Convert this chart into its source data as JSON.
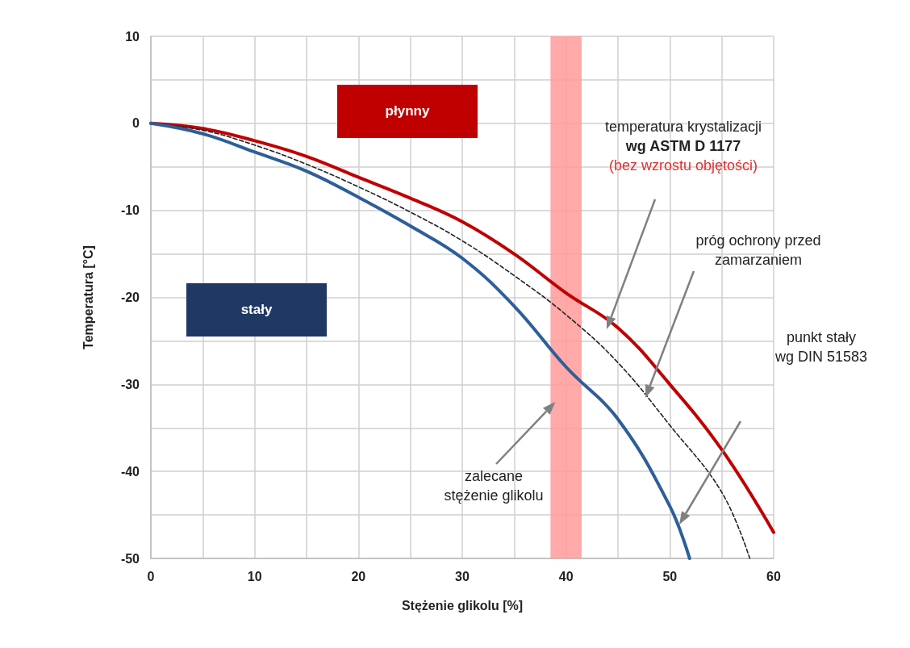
{
  "chart_data": {
    "type": "line",
    "xlabel": "Stężenie glikolu [%]",
    "ylabel": "Temperatura [°C]",
    "x": [
      0,
      5,
      10,
      15,
      20,
      25,
      30,
      35,
      40,
      45,
      50,
      55,
      60
    ],
    "series": [
      {
        "color": "#c00000",
        "line_style": "solid",
        "values": [
          0,
          -0.6,
          -2,
          -3.8,
          -6.2,
          -8.6,
          -11.3,
          -15,
          -19.5,
          -23.5,
          -30,
          -37.5,
          -47
        ]
      },
      {
        "color": "#222222",
        "line_style": "dashed",
        "x": [
          0,
          5,
          10,
          15,
          20,
          25,
          30,
          35,
          40,
          45,
          50,
          55,
          57.7
        ],
        "values": [
          0,
          -0.8,
          -2.5,
          -4.7,
          -7.3,
          -10.2,
          -13.5,
          -17.5,
          -22,
          -27.5,
          -34.7,
          -42.4,
          -50
        ]
      },
      {
        "color": "#2e5e9a",
        "line_style": "solid",
        "x": [
          0,
          5,
          10,
          15,
          20,
          25,
          30,
          35,
          40,
          45,
          50,
          51.9
        ],
        "values": [
          0,
          -1.2,
          -3.3,
          -5.5,
          -8.5,
          -11.8,
          -15.5,
          -21,
          -28,
          -34,
          -44,
          -50
        ]
      }
    ],
    "marker": "none",
    "xlim": [
      0,
      60
    ],
    "xticks": [
      0,
      {
        "value": 5,
        "label": null
      },
      10,
      {
        "value": 15,
        "label": null
      },
      20,
      {
        "value": 25,
        "label": null
      },
      30,
      {
        "value": 35,
        "label": null
      },
      40,
      {
        "value": 45,
        "label": null
      },
      50,
      {
        "value": 55,
        "label": null
      },
      60
    ],
    "ylim": [
      -50,
      10
    ],
    "yticks": [
      -50,
      {
        "value": -45,
        "label": null
      },
      -40,
      {
        "value": -35,
        "label": null
      },
      -30,
      {
        "value": -25,
        "label": null
      },
      -20,
      {
        "value": -15,
        "label": null
      },
      -10,
      {
        "value": -5,
        "label": null
      },
      0,
      {
        "value": 5,
        "label": null
      },
      10
    ],
    "grid": true,
    "bands": [
      {
        "axis": "x",
        "from": 38.5,
        "to": 41.5,
        "color": "#ff9a9a",
        "label": "zalecane\nstężenie glikolu"
      }
    ],
    "annotations": [
      "płynny",
      "stały",
      "temperatura krystalizacji\nwg ASTM D 1177\n(bez wzrostu objętości)",
      "próg ochrony przed\nzamarzaniem",
      "punkt stały\nwg DIN 51583"
    ]
  }
}
